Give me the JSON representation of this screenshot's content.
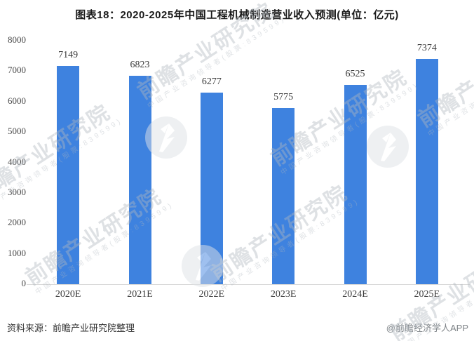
{
  "chart_data": {
    "type": "bar",
    "title": "图表18：2020-2025年中国工程机械制造营业收入预测(单位：亿元)",
    "categories": [
      "2020E",
      "2021E",
      "2022E",
      "2023E",
      "2024E",
      "2025E"
    ],
    "values": [
      7149,
      6823,
      6277,
      5775,
      6525,
      7374
    ],
    "xlabel": "",
    "ylabel": "",
    "ylim": [
      0,
      8000
    ],
    "yticks": [
      0,
      1000,
      2000,
      3000,
      4000,
      5000,
      6000,
      7000,
      8000
    ],
    "bar_color": "#3E82DF",
    "axis_color": "#d9d9d9",
    "grid": false,
    "legend": "none"
  },
  "footer": {
    "source": "资料来源：前瞻产业研究院整理",
    "brand": "@前瞻经济学人APP"
  },
  "watermark": {
    "name": "前瞻产业研究院",
    "subtext": "中国产业咨询领导者(股票:839599)",
    "logo": "qianzhan-logo"
  }
}
